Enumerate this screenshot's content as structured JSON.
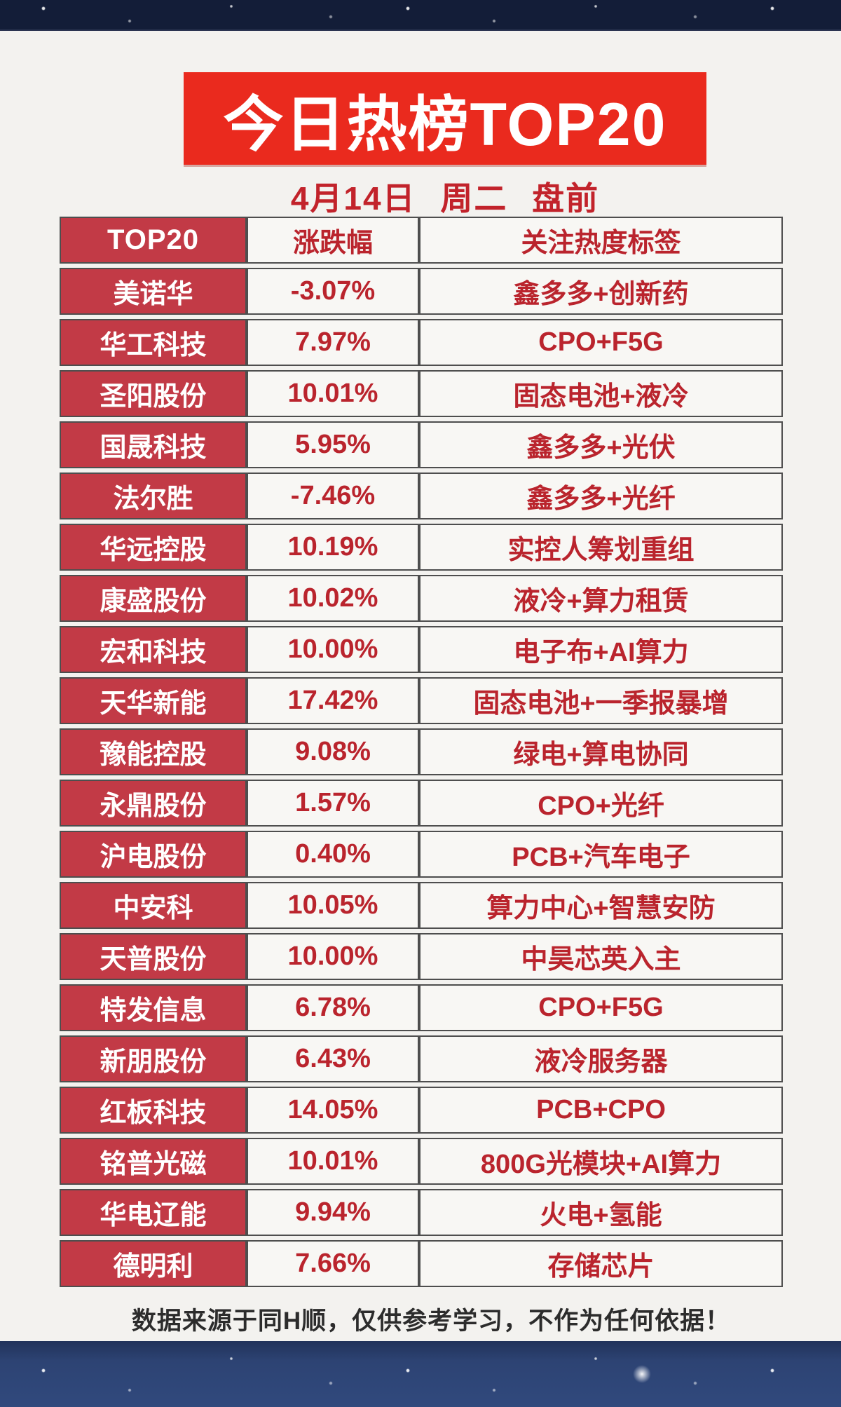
{
  "page": {
    "title": "今日热榜TOP20",
    "subtitle": "4月14日 周二 盘前",
    "footer": "数据来源于同H顺，仅供参考学习，不作为任何依据！"
  },
  "table": {
    "headers": [
      "TOP20",
      "涨跌幅",
      "关注热度标签"
    ],
    "rows": [
      {
        "name": "美诺华",
        "change": "-3.07%",
        "tag": "鑫多多+创新药"
      },
      {
        "name": "华工科技",
        "change": "7.97%",
        "tag": "CPO+F5G"
      },
      {
        "name": "圣阳股份",
        "change": "10.01%",
        "tag": "固态电池+液冷"
      },
      {
        "name": "国晟科技",
        "change": "5.95%",
        "tag": "鑫多多+光伏"
      },
      {
        "name": "法尔胜",
        "change": "-7.46%",
        "tag": "鑫多多+光纤"
      },
      {
        "name": "华远控股",
        "change": "10.19%",
        "tag": "实控人筹划重组"
      },
      {
        "name": "康盛股份",
        "change": "10.02%",
        "tag": "液冷+算力租赁"
      },
      {
        "name": "宏和科技",
        "change": "10.00%",
        "tag": "电子布+AI算力"
      },
      {
        "name": "天华新能",
        "change": "17.42%",
        "tag": "固态电池+一季报暴增"
      },
      {
        "name": "豫能控股",
        "change": "9.08%",
        "tag": "绿电+算电协同"
      },
      {
        "name": "永鼎股份",
        "change": "1.57%",
        "tag": "CPO+光纤"
      },
      {
        "name": "沪电股份",
        "change": "0.40%",
        "tag": "PCB+汽车电子"
      },
      {
        "name": "中安科",
        "change": "10.05%",
        "tag": "算力中心+智慧安防"
      },
      {
        "name": "天普股份",
        "change": "10.00%",
        "tag": "中昊芯英入主"
      },
      {
        "name": "特发信息",
        "change": "6.78%",
        "tag": "CPO+F5G"
      },
      {
        "name": "新朋股份",
        "change": "6.43%",
        "tag": "液冷服务器"
      },
      {
        "name": "红板科技",
        "change": "14.05%",
        "tag": "PCB+CPO"
      },
      {
        "name": "铭普光磁",
        "change": "10.01%",
        "tag": "800G光模块+AI算力"
      },
      {
        "name": "华电辽能",
        "change": "9.94%",
        "tag": "火电+氢能"
      },
      {
        "name": "德明利",
        "change": "7.66%",
        "tag": "存储芯片"
      }
    ]
  },
  "colors": {
    "banner_red": "#ea2a1e",
    "subtitle_red": "#c2232b",
    "name_cell_red": "#c23a46",
    "cell_text_red": "#ba242d",
    "border_gray": "#4e4e4e",
    "night_navy": "#15203c",
    "card_background": "#f3f2ef",
    "footer_text": "#2c2c2c"
  }
}
